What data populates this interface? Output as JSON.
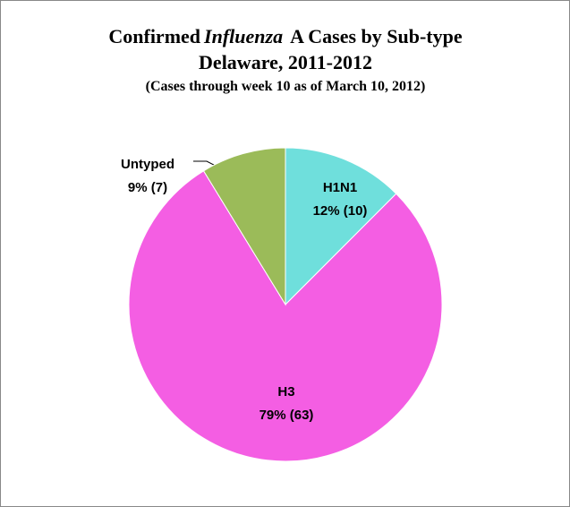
{
  "chart_data": {
    "type": "pie",
    "title": [
      "Confirmed",
      "Influenza",
      "A Cases by Sub-type"
    ],
    "subtitle": [
      "Delaware, 2011-2012",
      "(Cases through week 10 as of March 10, 2012)"
    ],
    "categories": [
      "H1N1",
      "H3",
      "Untyped"
    ],
    "values": [
      10,
      63,
      7
    ],
    "value_labels": [
      "12% (10)",
      "79% (63)",
      "9% (7)"
    ],
    "colors": [
      "#6fdfdc",
      "#f45ee3",
      "#9bbb59"
    ]
  }
}
